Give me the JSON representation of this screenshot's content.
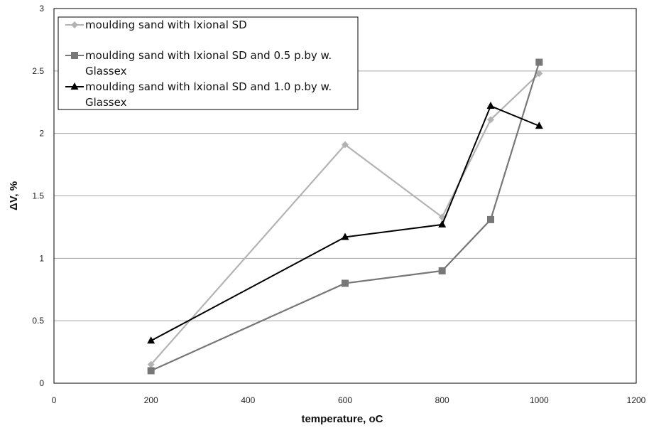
{
  "chart_data": {
    "type": "line",
    "xlabel": "temperature, ",
    "xlabel_unit": "oC",
    "ylabel": "ΔV, %",
    "xlim": [
      0,
      1200
    ],
    "ylim": [
      0,
      3
    ],
    "x_ticks": [
      "0",
      "200",
      "400",
      "600",
      "800",
      "1000",
      "1200"
    ],
    "y_ticks": [
      "0",
      "0.5",
      "1",
      "1.5",
      "2",
      "2.5",
      "3"
    ],
    "grid": "horizontal",
    "legend_position": "top-left",
    "series": [
      {
        "name": "moulding sand with Ixional SD",
        "legend_lines": [
          "moulding sand with Ixional SD"
        ],
        "color": "#b3b3b3",
        "marker": "diamond",
        "x": [
          200,
          600,
          800,
          900,
          1000
        ],
        "y": [
          0.15,
          1.91,
          1.33,
          2.11,
          2.48
        ]
      },
      {
        "name": "moulding sand with Ixional SD and 0.5 p.by w. Glassex",
        "legend_lines": [
          "moulding sand with Ixional SD and 0.5 p.by w.",
          "Glassex"
        ],
        "color": "#777777",
        "marker": "square",
        "x": [
          200,
          600,
          800,
          900,
          1000
        ],
        "y": [
          0.1,
          0.8,
          0.9,
          1.31,
          2.57
        ]
      },
      {
        "name": "moulding sand with Ixional SD and 1.0 p.by w. Glassex",
        "legend_lines": [
          "moulding sand with Ixional SD and 1.0 p.by w.",
          "Glassex"
        ],
        "color": "#000000",
        "marker": "triangle",
        "x": [
          200,
          600,
          800,
          900,
          1000
        ],
        "y": [
          0.34,
          1.17,
          1.27,
          2.22,
          2.06
        ]
      }
    ]
  }
}
